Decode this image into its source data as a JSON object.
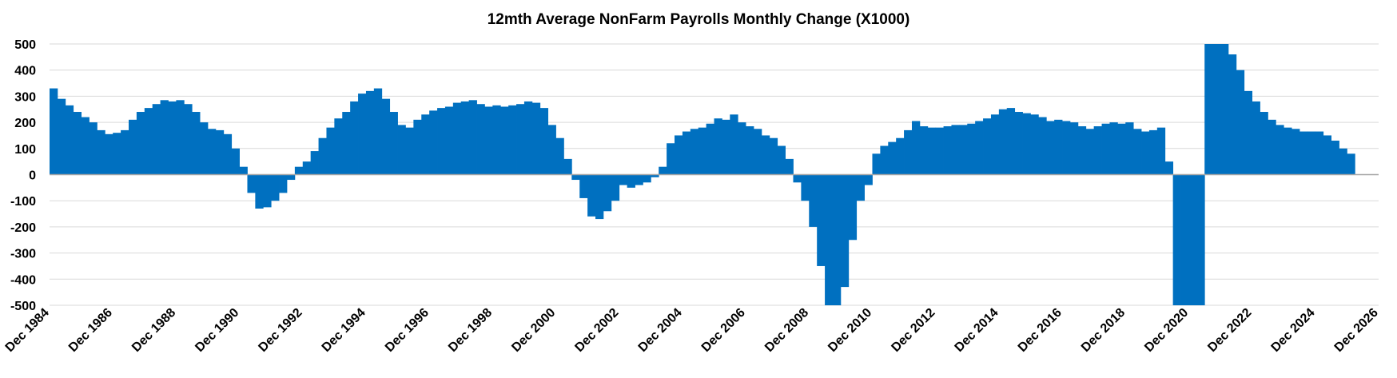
{
  "chart_data": {
    "type": "bar",
    "title": "12mth Average NonFarm Payrolls Monthly Change (X1000)",
    "xlabel": "",
    "ylabel": "",
    "ylim": [
      -500,
      500
    ],
    "yticks": [
      500,
      400,
      300,
      200,
      100,
      0,
      -100,
      -200,
      -300,
      -400,
      -500
    ],
    "x_range": [
      "1984-12",
      "2026-12"
    ],
    "xticks": [
      {
        "date": "1984-12",
        "label": "Dec 1984"
      },
      {
        "date": "1986-12",
        "label": "Dec 1986"
      },
      {
        "date": "1988-12",
        "label": "Dec 1988"
      },
      {
        "date": "1990-12",
        "label": "Dec 1990"
      },
      {
        "date": "1992-12",
        "label": "Dec 1992"
      },
      {
        "date": "1994-12",
        "label": "Dec 1994"
      },
      {
        "date": "1996-12",
        "label": "Dec 1996"
      },
      {
        "date": "1998-12",
        "label": "Dec 1998"
      },
      {
        "date": "2000-12",
        "label": "Dec 2000"
      },
      {
        "date": "2002-12",
        "label": "Dec 2002"
      },
      {
        "date": "2004-12",
        "label": "Dec 2004"
      },
      {
        "date": "2006-12",
        "label": "Dec 2006"
      },
      {
        "date": "2008-12",
        "label": "Dec 2008"
      },
      {
        "date": "2010-12",
        "label": "Dec 2010"
      },
      {
        "date": "2012-12",
        "label": "Dec 2012"
      },
      {
        "date": "2014-12",
        "label": "Dec 2014"
      },
      {
        "date": "2016-12",
        "label": "Dec 2016"
      },
      {
        "date": "2018-12",
        "label": "Dec 2018"
      },
      {
        "date": "2020-12",
        "label": "Dec 2020"
      },
      {
        "date": "2022-12",
        "label": "Dec 2022"
      },
      {
        "date": "2024-12",
        "label": "Dec 2024"
      },
      {
        "date": "2026-12",
        "label": "Dec 2026"
      }
    ],
    "grid": true,
    "legend": "none",
    "bar_color": "#0070C0",
    "series": [
      {
        "points": [
          [
            "1984-12",
            330
          ],
          [
            "1985-03",
            290
          ],
          [
            "1985-06",
            265
          ],
          [
            "1985-09",
            240
          ],
          [
            "1985-12",
            220
          ],
          [
            "1986-03",
            200
          ],
          [
            "1986-06",
            170
          ],
          [
            "1986-09",
            155
          ],
          [
            "1986-12",
            160
          ],
          [
            "1987-03",
            170
          ],
          [
            "1987-06",
            210
          ],
          [
            "1987-09",
            240
          ],
          [
            "1987-12",
            255
          ],
          [
            "1988-03",
            270
          ],
          [
            "1988-06",
            285
          ],
          [
            "1988-09",
            280
          ],
          [
            "1988-12",
            285
          ],
          [
            "1989-03",
            270
          ],
          [
            "1989-06",
            240
          ],
          [
            "1989-09",
            200
          ],
          [
            "1989-12",
            175
          ],
          [
            "1990-03",
            170
          ],
          [
            "1990-06",
            155
          ],
          [
            "1990-09",
            100
          ],
          [
            "1990-12",
            30
          ],
          [
            "1991-03",
            -70
          ],
          [
            "1991-06",
            -130
          ],
          [
            "1991-09",
            -125
          ],
          [
            "1991-12",
            -100
          ],
          [
            "1992-03",
            -70
          ],
          [
            "1992-06",
            -20
          ],
          [
            "1992-09",
            30
          ],
          [
            "1992-12",
            50
          ],
          [
            "1993-03",
            90
          ],
          [
            "1993-06",
            140
          ],
          [
            "1993-09",
            180
          ],
          [
            "1993-12",
            215
          ],
          [
            "1994-03",
            240
          ],
          [
            "1994-06",
            280
          ],
          [
            "1994-09",
            310
          ],
          [
            "1994-12",
            320
          ],
          [
            "1995-03",
            330
          ],
          [
            "1995-06",
            290
          ],
          [
            "1995-09",
            240
          ],
          [
            "1995-12",
            190
          ],
          [
            "1996-03",
            180
          ],
          [
            "1996-06",
            210
          ],
          [
            "1996-09",
            230
          ],
          [
            "1996-12",
            245
          ],
          [
            "1997-03",
            255
          ],
          [
            "1997-06",
            260
          ],
          [
            "1997-09",
            275
          ],
          [
            "1997-12",
            280
          ],
          [
            "1998-03",
            285
          ],
          [
            "1998-06",
            270
          ],
          [
            "1998-09",
            260
          ],
          [
            "1998-12",
            265
          ],
          [
            "1999-03",
            260
          ],
          [
            "1999-06",
            265
          ],
          [
            "1999-09",
            270
          ],
          [
            "1999-12",
            280
          ],
          [
            "2000-03",
            275
          ],
          [
            "2000-06",
            255
          ],
          [
            "2000-09",
            190
          ],
          [
            "2000-12",
            140
          ],
          [
            "2001-03",
            60
          ],
          [
            "2001-06",
            -20
          ],
          [
            "2001-09",
            -90
          ],
          [
            "2001-12",
            -160
          ],
          [
            "2002-03",
            -170
          ],
          [
            "2002-06",
            -140
          ],
          [
            "2002-09",
            -100
          ],
          [
            "2002-12",
            -40
          ],
          [
            "2003-03",
            -50
          ],
          [
            "2003-06",
            -40
          ],
          [
            "2003-09",
            -30
          ],
          [
            "2003-12",
            -10
          ],
          [
            "2004-03",
            30
          ],
          [
            "2004-06",
            120
          ],
          [
            "2004-09",
            150
          ],
          [
            "2004-12",
            165
          ],
          [
            "2005-03",
            175
          ],
          [
            "2005-06",
            180
          ],
          [
            "2005-09",
            195
          ],
          [
            "2005-12",
            215
          ],
          [
            "2006-03",
            210
          ],
          [
            "2006-06",
            230
          ],
          [
            "2006-09",
            200
          ],
          [
            "2006-12",
            185
          ],
          [
            "2007-03",
            175
          ],
          [
            "2007-06",
            150
          ],
          [
            "2007-09",
            140
          ],
          [
            "2007-12",
            110
          ],
          [
            "2008-03",
            60
          ],
          [
            "2008-06",
            -30
          ],
          [
            "2008-09",
            -100
          ],
          [
            "2008-12",
            -200
          ],
          [
            "2009-03",
            -350
          ],
          [
            "2009-06",
            -500
          ],
          [
            "2009-09",
            -500
          ],
          [
            "2009-12",
            -430
          ],
          [
            "2010-03",
            -250
          ],
          [
            "2010-06",
            -100
          ],
          [
            "2010-09",
            -40
          ],
          [
            "2010-12",
            80
          ],
          [
            "2011-03",
            110
          ],
          [
            "2011-06",
            125
          ],
          [
            "2011-09",
            140
          ],
          [
            "2011-12",
            170
          ],
          [
            "2012-03",
            205
          ],
          [
            "2012-06",
            185
          ],
          [
            "2012-09",
            180
          ],
          [
            "2012-12",
            180
          ],
          [
            "2013-03",
            185
          ],
          [
            "2013-06",
            190
          ],
          [
            "2013-09",
            190
          ],
          [
            "2013-12",
            195
          ],
          [
            "2014-03",
            205
          ],
          [
            "2014-06",
            215
          ],
          [
            "2014-09",
            230
          ],
          [
            "2014-12",
            250
          ],
          [
            "2015-03",
            255
          ],
          [
            "2015-06",
            240
          ],
          [
            "2015-09",
            235
          ],
          [
            "2015-12",
            230
          ],
          [
            "2016-03",
            220
          ],
          [
            "2016-06",
            205
          ],
          [
            "2016-09",
            210
          ],
          [
            "2016-12",
            205
          ],
          [
            "2017-03",
            200
          ],
          [
            "2017-06",
            185
          ],
          [
            "2017-09",
            175
          ],
          [
            "2017-12",
            185
          ],
          [
            "2018-03",
            195
          ],
          [
            "2018-06",
            200
          ],
          [
            "2018-09",
            195
          ],
          [
            "2018-12",
            200
          ],
          [
            "2019-03",
            175
          ],
          [
            "2019-06",
            165
          ],
          [
            "2019-09",
            170
          ],
          [
            "2019-12",
            180
          ],
          [
            "2020-03",
            50
          ],
          [
            "2020-06",
            -500
          ],
          [
            "2020-09",
            -500
          ],
          [
            "2020-12",
            -500
          ],
          [
            "2021-03",
            -500
          ],
          [
            "2021-06",
            500
          ],
          [
            "2021-09",
            500
          ],
          [
            "2021-12",
            500
          ],
          [
            "2022-03",
            460
          ],
          [
            "2022-06",
            400
          ],
          [
            "2022-09",
            320
          ],
          [
            "2022-12",
            280
          ],
          [
            "2023-03",
            240
          ],
          [
            "2023-06",
            210
          ],
          [
            "2023-09",
            190
          ],
          [
            "2023-12",
            180
          ],
          [
            "2024-03",
            175
          ],
          [
            "2024-06",
            165
          ],
          [
            "2024-09",
            165
          ],
          [
            "2024-12",
            165
          ],
          [
            "2025-03",
            150
          ],
          [
            "2025-06",
            130
          ],
          [
            "2025-09",
            100
          ],
          [
            "2025-12",
            80
          ]
        ]
      }
    ]
  }
}
